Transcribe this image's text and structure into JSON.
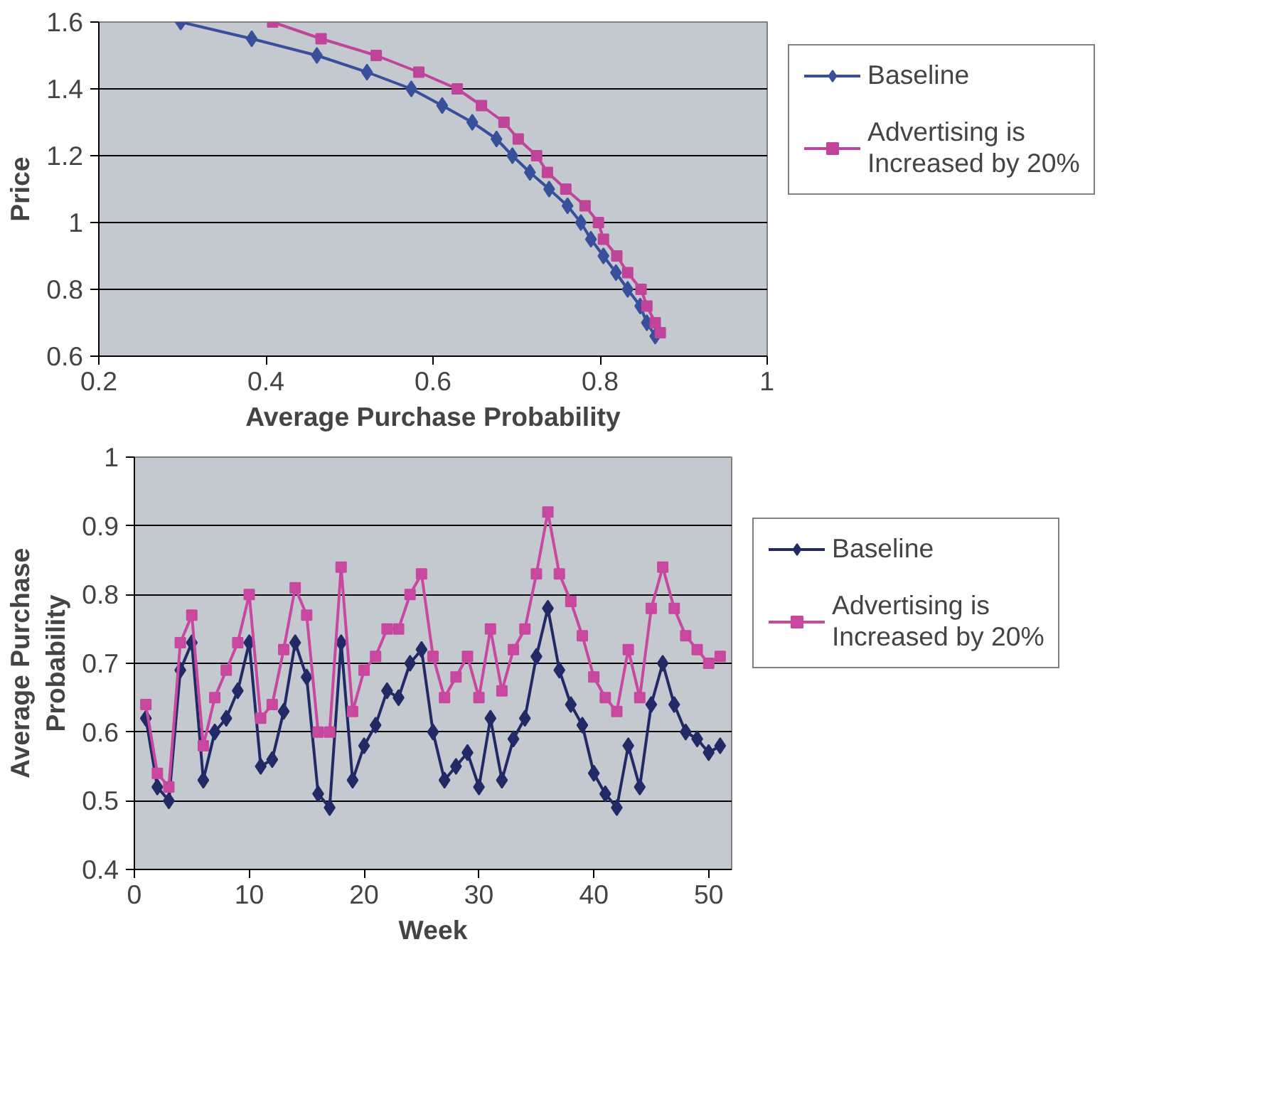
{
  "chart_data": [
    {
      "type": "line",
      "xlabel": "Average Purchase Probability",
      "ylabel": "Price",
      "xlim": [
        0.2,
        1
      ],
      "xticks": [
        0.2,
        0.4,
        0.6,
        0.8,
        1
      ],
      "ylim": [
        0.6,
        1.6
      ],
      "yticks": [
        0.6,
        0.8,
        1,
        1.2,
        1.4,
        1.6
      ],
      "grid": "y",
      "legend": "right",
      "series": [
        {
          "name": "Baseline",
          "color": "#38509c",
          "marker": "diamond",
          "x": [
            0.298,
            0.383,
            0.461,
            0.521,
            0.574,
            0.611,
            0.647,
            0.676,
            0.695,
            0.716,
            0.739,
            0.761,
            0.777,
            0.789,
            0.804,
            0.819,
            0.833,
            0.848,
            0.856,
            0.866
          ],
          "values": [
            1.6,
            1.55,
            1.5,
            1.45,
            1.4,
            1.35,
            1.3,
            1.25,
            1.2,
            1.15,
            1.1,
            1.05,
            1.0,
            0.95,
            0.9,
            0.85,
            0.8,
            0.75,
            0.7,
            0.66
          ]
        },
        {
          "name": "Advertising is\nIncreased by 20%",
          "color": "#c0449a",
          "marker": "square",
          "x": [
            0.408,
            0.466,
            0.532,
            0.583,
            0.629,
            0.658,
            0.685,
            0.702,
            0.724,
            0.737,
            0.759,
            0.782,
            0.798,
            0.804,
            0.82,
            0.833,
            0.849,
            0.856,
            0.866,
            0.872
          ],
          "values": [
            1.6,
            1.55,
            1.5,
            1.45,
            1.4,
            1.35,
            1.3,
            1.25,
            1.2,
            1.15,
            1.1,
            1.05,
            1.0,
            0.95,
            0.9,
            0.85,
            0.8,
            0.75,
            0.7,
            0.67
          ]
        }
      ]
    },
    {
      "type": "line",
      "xlabel": "Week",
      "ylabel": "Average Purchase\nProbability",
      "xlim": [
        0,
        52
      ],
      "xticks": [
        0,
        10,
        20,
        30,
        40,
        50
      ],
      "ylim": [
        0.4,
        1
      ],
      "yticks": [
        0.4,
        0.5,
        0.6,
        0.7,
        0.8,
        0.9,
        1
      ],
      "grid": "y",
      "legend": "right",
      "x": [
        1,
        2,
        3,
        4,
        5,
        6,
        7,
        8,
        9,
        10,
        11,
        12,
        13,
        14,
        15,
        16,
        17,
        18,
        19,
        20,
        21,
        22,
        23,
        24,
        25,
        26,
        27,
        28,
        29,
        30,
        31,
        32,
        33,
        34,
        35,
        36,
        37,
        38,
        39,
        40,
        41,
        42,
        43,
        44,
        45,
        46,
        47,
        48,
        49,
        50,
        51
      ],
      "series": [
        {
          "name": "Baseline",
          "color": "#222a66",
          "marker": "diamond",
          "values": [
            0.62,
            0.52,
            0.5,
            0.69,
            0.73,
            0.53,
            0.6,
            0.62,
            0.66,
            0.73,
            0.55,
            0.56,
            0.63,
            0.73,
            0.68,
            0.51,
            0.49,
            0.73,
            0.53,
            0.58,
            0.61,
            0.66,
            0.65,
            0.7,
            0.72,
            0.6,
            0.53,
            0.55,
            0.57,
            0.52,
            0.62,
            0.53,
            0.59,
            0.62,
            0.71,
            0.78,
            0.69,
            0.64,
            0.61,
            0.54,
            0.51,
            0.49,
            0.58,
            0.52,
            0.64,
            0.7,
            0.64,
            0.6,
            0.59,
            0.57,
            0.58
          ]
        },
        {
          "name": "Advertising is\nIncreased by 20%",
          "color": "#c8479f",
          "marker": "square",
          "values": [
            0.64,
            0.54,
            0.52,
            0.73,
            0.77,
            0.58,
            0.65,
            0.69,
            0.73,
            0.8,
            0.62,
            0.64,
            0.72,
            0.81,
            0.77,
            0.6,
            0.6,
            0.84,
            0.63,
            0.69,
            0.71,
            0.75,
            0.75,
            0.8,
            0.83,
            0.71,
            0.65,
            0.68,
            0.71,
            0.65,
            0.75,
            0.66,
            0.72,
            0.75,
            0.83,
            0.92,
            0.83,
            0.79,
            0.74,
            0.68,
            0.65,
            0.63,
            0.72,
            0.65,
            0.78,
            0.84,
            0.78,
            0.74,
            0.72,
            0.7,
            0.71
          ]
        }
      ]
    }
  ]
}
